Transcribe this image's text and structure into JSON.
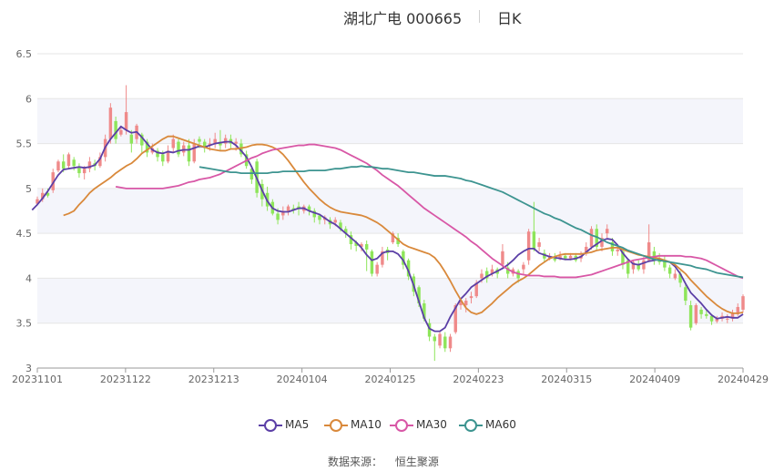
{
  "header": {
    "title": "湖北广电 000665",
    "period": "日K"
  },
  "footer": {
    "source_label": "数据来源：",
    "source_name": "恒生聚源"
  },
  "colors": {
    "up": "#ef8a8a",
    "down": "#8ee55a",
    "MA5": "#5b3fa6",
    "MA10": "#d9893b",
    "MA30": "#d857a6",
    "MA60": "#3d9490",
    "grid": "#e6e6e6",
    "band": "#f4f5fb",
    "axis_text": "#666666"
  },
  "chart_data": {
    "type": "candlestick",
    "ylim": [
      3,
      6.5
    ],
    "y_ticks": [
      "3",
      "3.5",
      "4",
      "4.5",
      "5",
      "5.5",
      "6",
      "6.5"
    ],
    "x_tick_labels": [
      "20231101",
      "20231122",
      "20231213",
      "20240104",
      "20240125",
      "20240223",
      "20240315",
      "20240409",
      "20240429"
    ],
    "legend": [
      "MA5",
      "MA10",
      "MA30",
      "MA60"
    ],
    "candles": [
      [
        4.83,
        4.88,
        4.82,
        4.91
      ],
      [
        4.88,
        4.95,
        4.85,
        5.0
      ],
      [
        4.95,
        4.92,
        4.9,
        5.0
      ],
      [
        4.98,
        5.18,
        4.95,
        5.22
      ],
      [
        5.2,
        5.3,
        5.18,
        5.32
      ],
      [
        5.3,
        5.22,
        5.18,
        5.38
      ],
      [
        5.25,
        5.38,
        5.22,
        5.4
      ],
      [
        5.32,
        5.25,
        5.2,
        5.35
      ],
      [
        5.24,
        5.17,
        5.12,
        5.28
      ],
      [
        5.17,
        5.22,
        5.1,
        5.25
      ],
      [
        5.22,
        5.3,
        5.18,
        5.35
      ],
      [
        5.28,
        5.25,
        5.2,
        5.32
      ],
      [
        5.25,
        5.35,
        5.23,
        5.4
      ],
      [
        5.35,
        5.55,
        5.3,
        5.6
      ],
      [
        5.55,
        5.9,
        5.5,
        5.95
      ],
      [
        5.75,
        5.55,
        5.5,
        5.8
      ],
      [
        5.6,
        5.65,
        5.58,
        5.7
      ],
      [
        5.65,
        5.85,
        5.6,
        6.15
      ],
      [
        5.6,
        5.5,
        5.4,
        5.65
      ],
      [
        5.55,
        5.7,
        5.5,
        5.72
      ],
      [
        5.6,
        5.48,
        5.4,
        5.62
      ],
      [
        5.52,
        5.4,
        5.35,
        5.55
      ],
      [
        5.4,
        5.45,
        5.38,
        5.5
      ],
      [
        5.42,
        5.35,
        5.3,
        5.45
      ],
      [
        5.38,
        5.3,
        5.25,
        5.42
      ],
      [
        5.3,
        5.42,
        5.28,
        5.48
      ],
      [
        5.45,
        5.55,
        5.4,
        5.6
      ],
      [
        5.52,
        5.38,
        5.35,
        5.55
      ],
      [
        5.4,
        5.48,
        5.36,
        5.52
      ],
      [
        5.48,
        5.3,
        5.25,
        5.55
      ],
      [
        5.3,
        5.5,
        5.28,
        5.55
      ],
      [
        5.55,
        5.52,
        5.45,
        5.58
      ],
      [
        5.52,
        5.45,
        5.4,
        5.55
      ],
      [
        5.48,
        5.5,
        5.42,
        5.56
      ],
      [
        5.5,
        5.55,
        5.45,
        5.62
      ],
      [
        5.52,
        5.48,
        5.42,
        5.65
      ],
      [
        5.5,
        5.56,
        5.45,
        5.6
      ],
      [
        5.55,
        5.5,
        5.45,
        5.6
      ],
      [
        5.5,
        5.52,
        5.42,
        5.56
      ],
      [
        5.5,
        5.38,
        5.35,
        5.55
      ],
      [
        5.38,
        5.25,
        5.22,
        5.42
      ],
      [
        5.22,
        5.1,
        5.05,
        5.25
      ],
      [
        5.3,
        4.95,
        4.9,
        5.33
      ],
      [
        5.05,
        4.88,
        4.8,
        5.1
      ],
      [
        4.95,
        4.8,
        4.75,
        5.02
      ],
      [
        4.85,
        4.72,
        4.7,
        4.88
      ],
      [
        4.72,
        4.65,
        4.6,
        4.78
      ],
      [
        4.7,
        4.75,
        4.65,
        4.8
      ],
      [
        4.75,
        4.8,
        4.7,
        4.82
      ],
      [
        4.78,
        4.76,
        4.72,
        4.82
      ],
      [
        4.8,
        4.78,
        4.7,
        4.85
      ],
      [
        4.75,
        4.8,
        4.72,
        4.82
      ],
      [
        4.8,
        4.75,
        4.7,
        4.82
      ],
      [
        4.75,
        4.68,
        4.62,
        4.78
      ],
      [
        4.7,
        4.65,
        4.6,
        4.72
      ],
      [
        4.65,
        4.68,
        4.6,
        4.7
      ],
      [
        4.65,
        4.6,
        4.55,
        4.68
      ],
      [
        4.62,
        4.65,
        4.58,
        4.68
      ],
      [
        4.62,
        4.55,
        4.52,
        4.65
      ],
      [
        4.55,
        4.5,
        4.45,
        4.58
      ],
      [
        4.48,
        4.38,
        4.32,
        4.52
      ],
      [
        4.4,
        4.36,
        4.3,
        4.42
      ],
      [
        4.35,
        4.38,
        4.3,
        4.4
      ],
      [
        4.38,
        4.32,
        4.08,
        4.42
      ],
      [
        4.3,
        4.05,
        4.02,
        4.32
      ],
      [
        4.05,
        4.15,
        4.02,
        4.18
      ],
      [
        4.15,
        4.3,
        4.12,
        4.35
      ],
      [
        4.32,
        4.28,
        4.2,
        4.35
      ],
      [
        4.4,
        4.5,
        4.38,
        4.52
      ],
      [
        4.45,
        4.38,
        4.35,
        4.5
      ],
      [
        4.3,
        4.15,
        4.1,
        4.32
      ],
      [
        4.2,
        4.02,
        3.98,
        4.22
      ],
      [
        4.02,
        3.85,
        3.8,
        4.05
      ],
      [
        3.9,
        3.72,
        3.68,
        3.92
      ],
      [
        3.72,
        3.55,
        3.52,
        3.76
      ],
      [
        3.5,
        3.35,
        3.3,
        3.55
      ],
      [
        3.35,
        3.3,
        3.08,
        3.38
      ],
      [
        3.25,
        3.38,
        3.22,
        3.4
      ],
      [
        3.35,
        3.22,
        3.18,
        3.4
      ],
      [
        3.22,
        3.35,
        3.18,
        3.38
      ],
      [
        3.4,
        3.7,
        3.38,
        3.72
      ],
      [
        3.7,
        3.75,
        3.65,
        3.78
      ],
      [
        3.7,
        3.75,
        3.62,
        3.78
      ],
      [
        3.78,
        3.8,
        3.72,
        3.85
      ],
      [
        3.8,
        3.95,
        3.78,
        3.98
      ],
      [
        4.0,
        4.05,
        3.95,
        4.1
      ],
      [
        4.08,
        4.0,
        3.95,
        4.12
      ],
      [
        4.05,
        4.1,
        4.02,
        4.15
      ],
      [
        4.1,
        4.05,
        4.0,
        4.12
      ],
      [
        4.15,
        4.3,
        4.12,
        4.38
      ],
      [
        4.12,
        4.05,
        4.0,
        4.18
      ],
      [
        4.05,
        4.1,
        4.02,
        4.12
      ],
      [
        4.08,
        4.0,
        3.95,
        4.1
      ],
      [
        4.1,
        4.15,
        4.05,
        4.18
      ],
      [
        4.2,
        4.52,
        4.15,
        4.55
      ],
      [
        4.52,
        4.32,
        4.3,
        4.85
      ],
      [
        4.35,
        4.4,
        4.3,
        4.45
      ],
      [
        4.28,
        4.22,
        4.18,
        4.32
      ],
      [
        4.22,
        4.25,
        4.2,
        4.28
      ],
      [
        4.22,
        4.2,
        4.18,
        4.28
      ],
      [
        4.22,
        4.25,
        4.2,
        4.3
      ],
      [
        4.25,
        4.22,
        4.2,
        4.28
      ],
      [
        4.22,
        4.25,
        4.2,
        4.28
      ],
      [
        4.25,
        4.2,
        4.18,
        4.28
      ],
      [
        4.22,
        4.25,
        4.18,
        4.3
      ],
      [
        4.28,
        4.35,
        4.25,
        4.4
      ],
      [
        4.35,
        4.55,
        4.32,
        4.58
      ],
      [
        4.55,
        4.35,
        4.32,
        4.6
      ],
      [
        4.35,
        4.45,
        4.3,
        4.5
      ],
      [
        4.5,
        4.55,
        4.45,
        4.6
      ],
      [
        4.4,
        4.3,
        4.25,
        4.45
      ],
      [
        4.3,
        4.32,
        4.25,
        4.38
      ],
      [
        4.3,
        4.15,
        4.1,
        4.32
      ],
      [
        4.2,
        4.05,
        4.0,
        4.22
      ],
      [
        4.1,
        4.18,
        4.05,
        4.2
      ],
      [
        4.15,
        4.1,
        4.08,
        4.2
      ],
      [
        4.1,
        4.2,
        4.05,
        4.25
      ],
      [
        4.2,
        4.4,
        4.18,
        4.6
      ],
      [
        4.3,
        4.2,
        4.15,
        4.35
      ],
      [
        4.22,
        4.18,
        4.15,
        4.28
      ],
      [
        4.2,
        4.12,
        4.08,
        4.25
      ],
      [
        4.12,
        4.05,
        4.0,
        4.15
      ],
      [
        4.0,
        4.05,
        3.98,
        4.1
      ],
      [
        4.05,
        3.95,
        3.9,
        4.08
      ],
      [
        3.9,
        3.75,
        3.7,
        3.95
      ],
      [
        3.7,
        3.45,
        3.42,
        3.75
      ],
      [
        3.5,
        3.7,
        3.48,
        3.72
      ],
      [
        3.65,
        3.6,
        3.55,
        3.68
      ],
      [
        3.6,
        3.58,
        3.55,
        3.65
      ],
      [
        3.58,
        3.52,
        3.48,
        3.6
      ],
      [
        3.52,
        3.55,
        3.5,
        3.58
      ],
      [
        3.55,
        3.58,
        3.52,
        3.62
      ],
      [
        3.55,
        3.55,
        3.5,
        3.6
      ],
      [
        3.55,
        3.62,
        3.52,
        3.65
      ],
      [
        3.6,
        3.68,
        3.58,
        3.72
      ],
      [
        3.65,
        3.8,
        3.62,
        3.82
      ]
    ],
    "series": [
      {
        "name": "MA5",
        "values": [
          4.76,
          4.82,
          4.89,
          4.97,
          5.06,
          5.15,
          5.21,
          5.22,
          5.23,
          5.24,
          5.23,
          5.24,
          5.26,
          5.33,
          5.46,
          5.55,
          5.62,
          5.69,
          5.65,
          5.62,
          5.63,
          5.57,
          5.5,
          5.43,
          5.4,
          5.39,
          5.41,
          5.4,
          5.42,
          5.43,
          5.43,
          5.45,
          5.47,
          5.46,
          5.48,
          5.5,
          5.51,
          5.52,
          5.52,
          5.48,
          5.42,
          5.35,
          5.24,
          5.11,
          4.98,
          4.86,
          4.78,
          4.75,
          4.74,
          4.74,
          4.76,
          4.78,
          4.78,
          4.75,
          4.73,
          4.71,
          4.67,
          4.63,
          4.6,
          4.55,
          4.5,
          4.45,
          4.4,
          4.34,
          4.26,
          4.2,
          4.22,
          4.28,
          4.3,
          4.3,
          4.27,
          4.2,
          4.08,
          3.92,
          3.74,
          3.56,
          3.44,
          3.41,
          3.41,
          3.45,
          3.57,
          3.67,
          3.77,
          3.83,
          3.9,
          3.94,
          3.98,
          4.02,
          4.05,
          4.08,
          4.11,
          4.15,
          4.2,
          4.26,
          4.3,
          4.33,
          4.33,
          4.28,
          4.26,
          4.24,
          4.23,
          4.22,
          4.21,
          4.21,
          4.22,
          4.24,
          4.29,
          4.34,
          4.38,
          4.42,
          4.44,
          4.43,
          4.37,
          4.28,
          4.21,
          4.16,
          4.15,
          4.17,
          4.19,
          4.2,
          4.21,
          4.2,
          4.18,
          4.13,
          4.05,
          3.94,
          3.84,
          3.78,
          3.72,
          3.65,
          3.59,
          3.55,
          3.56,
          3.57,
          3.56,
          3.56,
          3.6
        ]
      },
      {
        "name": "MA10",
        "values": [
          4.7,
          4.72,
          4.75,
          4.82,
          4.88,
          4.95,
          5.0,
          5.04,
          5.08,
          5.12,
          5.17,
          5.21,
          5.25,
          5.28,
          5.33,
          5.39,
          5.43,
          5.47,
          5.51,
          5.55,
          5.58,
          5.58,
          5.56,
          5.54,
          5.52,
          5.5,
          5.48,
          5.46,
          5.44,
          5.43,
          5.42,
          5.42,
          5.44,
          5.44,
          5.45,
          5.46,
          5.48,
          5.49,
          5.49,
          5.48,
          5.46,
          5.43,
          5.38,
          5.31,
          5.23,
          5.15,
          5.07,
          5.0,
          4.94,
          4.88,
          4.83,
          4.79,
          4.76,
          4.74,
          4.73,
          4.72,
          4.71,
          4.7,
          4.68,
          4.65,
          4.62,
          4.58,
          4.53,
          4.48,
          4.43,
          4.38,
          4.35,
          4.33,
          4.31,
          4.29,
          4.27,
          4.23,
          4.16,
          4.07,
          3.97,
          3.86,
          3.76,
          3.67,
          3.62,
          3.6,
          3.62,
          3.67,
          3.72,
          3.78,
          3.83,
          3.88,
          3.93,
          3.97,
          4.0,
          4.04,
          4.09,
          4.14,
          4.18,
          4.22,
          4.24,
          4.26,
          4.27,
          4.27,
          4.27,
          4.27,
          4.28,
          4.29,
          4.31,
          4.32,
          4.33,
          4.34,
          4.34,
          4.32,
          4.3,
          4.28,
          4.26,
          4.25,
          4.24,
          4.23,
          4.22,
          4.2,
          4.18,
          4.15,
          4.1,
          4.05,
          3.98,
          3.92,
          3.86,
          3.8,
          3.75,
          3.7,
          3.66,
          3.63,
          3.61,
          3.61,
          3.62
        ]
      },
      {
        "name": "MA30",
        "values": [
          5.02,
          5.01,
          5.0,
          5.0,
          5.0,
          5.0,
          5.0,
          5.0,
          5.0,
          5.0,
          5.01,
          5.02,
          5.03,
          5.05,
          5.07,
          5.08,
          5.1,
          5.11,
          5.12,
          5.14,
          5.16,
          5.19,
          5.22,
          5.25,
          5.28,
          5.31,
          5.34,
          5.36,
          5.39,
          5.41,
          5.43,
          5.44,
          5.45,
          5.46,
          5.47,
          5.48,
          5.48,
          5.49,
          5.49,
          5.48,
          5.47,
          5.46,
          5.45,
          5.43,
          5.4,
          5.37,
          5.34,
          5.31,
          5.28,
          5.24,
          5.2,
          5.15,
          5.11,
          5.07,
          5.03,
          4.98,
          4.93,
          4.88,
          4.83,
          4.78,
          4.74,
          4.7,
          4.66,
          4.62,
          4.58,
          4.54,
          4.5,
          4.46,
          4.41,
          4.37,
          4.32,
          4.27,
          4.22,
          4.18,
          4.14,
          4.1,
          4.07,
          4.05,
          4.04,
          4.03,
          4.03,
          4.03,
          4.02,
          4.02,
          4.02,
          4.01,
          4.01,
          4.01,
          4.01,
          4.02,
          4.03,
          4.04,
          4.06,
          4.08,
          4.1,
          4.12,
          4.14,
          4.16,
          4.18,
          4.2,
          4.21,
          4.22,
          4.23,
          4.24,
          4.25,
          4.25,
          4.25,
          4.25,
          4.25,
          4.24,
          4.24,
          4.23,
          4.22,
          4.2,
          4.17,
          4.14,
          4.11,
          4.08,
          4.05,
          4.02,
          4.0
        ]
      },
      {
        "name": "MA60",
        "values": [
          5.24,
          5.23,
          5.22,
          5.21,
          5.2,
          5.19,
          5.18,
          5.18,
          5.17,
          5.17,
          5.17,
          5.17,
          5.17,
          5.17,
          5.18,
          5.18,
          5.19,
          5.19,
          5.19,
          5.19,
          5.19,
          5.2,
          5.2,
          5.2,
          5.2,
          5.21,
          5.22,
          5.22,
          5.23,
          5.24,
          5.24,
          5.25,
          5.24,
          5.24,
          5.23,
          5.22,
          5.22,
          5.21,
          5.2,
          5.19,
          5.18,
          5.18,
          5.17,
          5.16,
          5.15,
          5.14,
          5.14,
          5.14,
          5.13,
          5.12,
          5.11,
          5.09,
          5.08,
          5.06,
          5.04,
          5.02,
          5.0,
          4.98,
          4.96,
          4.93,
          4.9,
          4.87,
          4.84,
          4.81,
          4.78,
          4.75,
          4.72,
          4.7,
          4.67,
          4.65,
          4.62,
          4.59,
          4.56,
          4.54,
          4.51,
          4.48,
          4.46,
          4.43,
          4.4,
          4.38,
          4.36,
          4.34,
          4.31,
          4.29,
          4.27,
          4.25,
          4.23,
          4.21,
          4.2,
          4.19,
          4.18,
          4.17,
          4.16,
          4.15,
          4.14,
          4.12,
          4.11,
          4.1,
          4.08,
          4.06,
          4.05,
          4.04,
          4.03,
          4.02,
          4.01
        ]
      }
    ]
  }
}
